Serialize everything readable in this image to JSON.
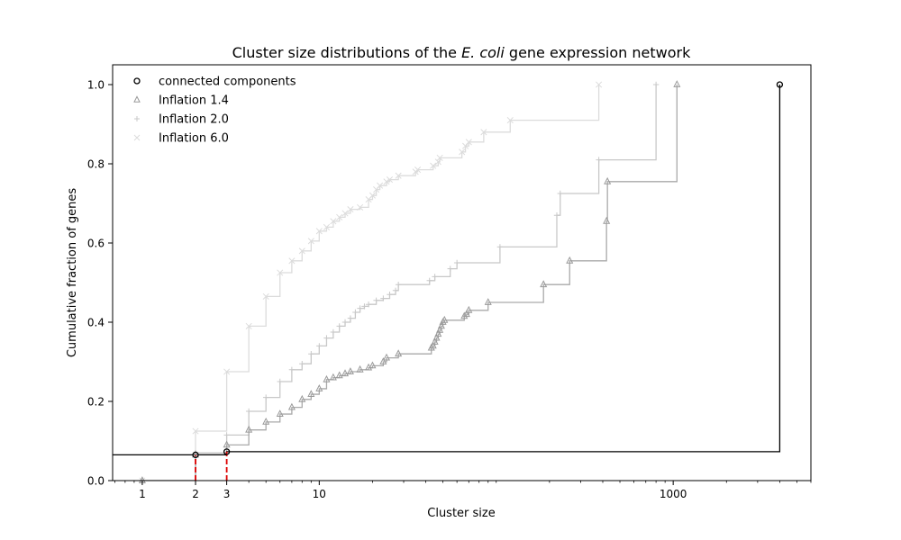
{
  "chart_data": {
    "type": "line",
    "step": "post",
    "title_prefix": "Cluster size distributions of the ",
    "title_species": "E. coli",
    "title_suffix": " gene expression network",
    "xlabel": "Cluster size",
    "ylabel": "Cumulative fraction of genes",
    "xscale": "log",
    "xlim": [
      0.68,
      6000
    ],
    "ylim": [
      0,
      1.05
    ],
    "xticks": [
      1,
      2,
      3,
      10,
      1000
    ],
    "xtick_labels": [
      "1",
      "2",
      "3",
      "10",
      "1000"
    ],
    "yticks": [
      0,
      0.2,
      0.4,
      0.6,
      0.8,
      1.0
    ],
    "ytick_labels": [
      "0.0",
      "0.2",
      "0.4",
      "0.6",
      "0.8",
      "1.0"
    ],
    "grid": false,
    "legend_position": "top-left",
    "series": [
      {
        "name": "connected components",
        "marker": "circle",
        "color": "#000000",
        "x": [
          2,
          3,
          4000
        ],
        "y": [
          0.065,
          0.073,
          1.0
        ]
      },
      {
        "name": "Inflation 1.4",
        "marker": "triangle",
        "color": "#aaaaaa",
        "x": [
          1,
          2,
          3,
          4,
          5,
          6,
          7,
          8,
          9,
          10,
          11,
          12,
          13,
          14,
          15,
          17,
          19,
          20,
          23,
          24,
          28,
          43,
          44,
          45,
          46,
          47,
          48,
          49,
          50,
          51,
          66,
          68,
          70,
          90,
          185,
          260,
          420,
          425,
          1050
        ],
        "y": [
          0.0,
          0.065,
          0.09,
          0.128,
          0.148,
          0.168,
          0.185,
          0.205,
          0.218,
          0.232,
          0.255,
          0.26,
          0.265,
          0.27,
          0.275,
          0.28,
          0.285,
          0.29,
          0.3,
          0.31,
          0.32,
          0.335,
          0.34,
          0.35,
          0.36,
          0.37,
          0.38,
          0.39,
          0.4,
          0.405,
          0.415,
          0.42,
          0.43,
          0.45,
          0.495,
          0.555,
          0.655,
          0.755,
          1.0
        ]
      },
      {
        "name": "Inflation 2.0",
        "marker": "plus",
        "color": "#c8c8c8",
        "x": [
          1,
          2,
          3,
          4,
          5,
          6,
          7,
          8,
          9,
          10,
          11,
          12,
          13,
          14,
          15,
          16,
          17,
          18,
          19,
          21,
          23,
          25,
          27,
          28,
          42,
          45,
          55,
          60,
          105,
          220,
          230,
          380,
          800
        ],
        "y": [
          0.0,
          0.07,
          0.115,
          0.175,
          0.21,
          0.25,
          0.28,
          0.295,
          0.32,
          0.34,
          0.36,
          0.375,
          0.39,
          0.4,
          0.41,
          0.425,
          0.435,
          0.44,
          0.445,
          0.455,
          0.46,
          0.47,
          0.48,
          0.495,
          0.505,
          0.515,
          0.535,
          0.55,
          0.59,
          0.67,
          0.725,
          0.81,
          1.0
        ]
      },
      {
        "name": "Inflation 6.0",
        "marker": "x",
        "color": "#dcdcdc",
        "x": [
          1,
          2,
          3,
          4,
          5,
          6,
          7,
          8,
          9,
          10,
          11,
          12,
          13,
          14,
          15,
          17,
          19,
          20,
          21,
          22,
          24,
          25,
          28,
          35,
          36,
          44,
          47,
          48,
          64,
          67,
          70,
          85,
          120,
          380
        ],
        "y": [
          0.0,
          0.125,
          0.275,
          0.39,
          0.465,
          0.525,
          0.555,
          0.58,
          0.605,
          0.63,
          0.64,
          0.655,
          0.665,
          0.675,
          0.685,
          0.69,
          0.71,
          0.72,
          0.735,
          0.745,
          0.755,
          0.76,
          0.77,
          0.78,
          0.785,
          0.795,
          0.805,
          0.815,
          0.83,
          0.845,
          0.855,
          0.88,
          0.91,
          1.0
        ]
      }
    ],
    "annotations": [
      {
        "type": "vline-dashed",
        "x": 2,
        "y_top": 0.065,
        "color": "#dd0000"
      },
      {
        "type": "vline-dashed",
        "x": 3,
        "y_top": 0.073,
        "color": "#dd0000"
      }
    ]
  }
}
